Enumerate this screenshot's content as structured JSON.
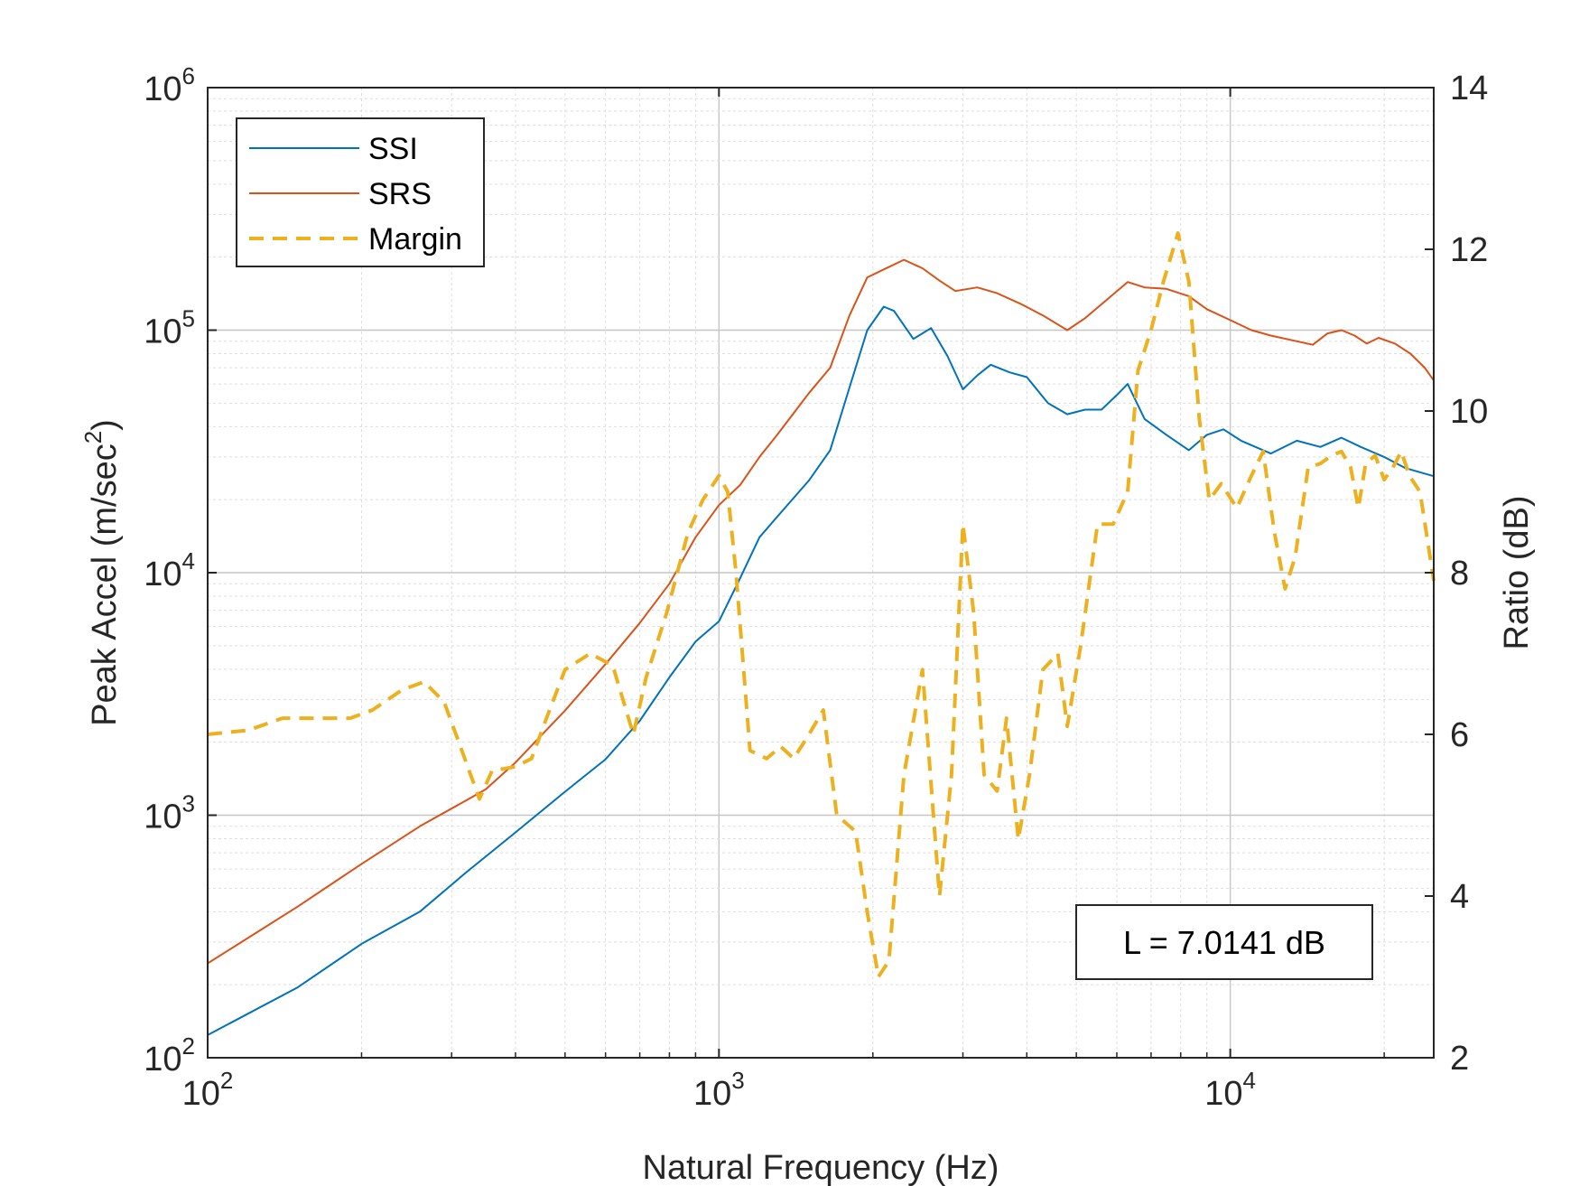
{
  "chart_data": {
    "type": "line",
    "xlabel": "Natural Frequency (Hz)",
    "ylabel_left": "Peak Accel (m/sec",
    "ylabel_left_sup": "2",
    "ylabel_left_end": ")",
    "ylabel_right": "Ratio (dB)",
    "x_scale": "log",
    "y_left_scale": "log",
    "xlim": [
      100,
      25000
    ],
    "ylim_left": [
      100,
      1000000
    ],
    "ylim_right": [
      2,
      14
    ],
    "grid": true,
    "legend_position": "top-left",
    "x_ticks": [
      {
        "base": "10",
        "exp": "2"
      },
      {
        "base": "10",
        "exp": "3"
      },
      {
        "base": "10",
        "exp": "4"
      }
    ],
    "y_left_ticks": [
      {
        "base": "10",
        "exp": "2"
      },
      {
        "base": "10",
        "exp": "3"
      },
      {
        "base": "10",
        "exp": "4"
      },
      {
        "base": "10",
        "exp": "5"
      },
      {
        "base": "10",
        "exp": "6"
      }
    ],
    "y_right_ticks": [
      "2",
      "4",
      "6",
      "8",
      "10",
      "12",
      "14"
    ],
    "annotation": "L = 7.0141 dB",
    "series": [
      {
        "name": "SSI",
        "axis": "left",
        "color": "#0072BD",
        "style": "solid",
        "points": [
          [
            100,
            124
          ],
          [
            150,
            195
          ],
          [
            200,
            295
          ],
          [
            260,
            400
          ],
          [
            320,
            580
          ],
          [
            400,
            850
          ],
          [
            500,
            1250
          ],
          [
            600,
            1700
          ],
          [
            700,
            2450
          ],
          [
            800,
            3700
          ],
          [
            900,
            5200
          ],
          [
            1000,
            6300
          ],
          [
            1100,
            9500
          ],
          [
            1200,
            14000
          ],
          [
            1300,
            17000
          ],
          [
            1500,
            24000
          ],
          [
            1650,
            32000
          ],
          [
            1800,
            58000
          ],
          [
            1950,
            100000
          ],
          [
            2100,
            125000
          ],
          [
            2200,
            120000
          ],
          [
            2400,
            92000
          ],
          [
            2600,
            102000
          ],
          [
            2800,
            78000
          ],
          [
            3000,
            57000
          ],
          [
            3200,
            65000
          ],
          [
            3400,
            72000
          ],
          [
            3700,
            67000
          ],
          [
            4000,
            64000
          ],
          [
            4400,
            50000
          ],
          [
            4800,
            45000
          ],
          [
            5200,
            47000
          ],
          [
            5600,
            47000
          ],
          [
            6000,
            54000
          ],
          [
            6300,
            60000
          ],
          [
            6800,
            43000
          ],
          [
            7500,
            37000
          ],
          [
            8300,
            32000
          ],
          [
            9000,
            37000
          ],
          [
            9700,
            39000
          ],
          [
            10500,
            35000
          ],
          [
            12000,
            31000
          ],
          [
            13500,
            35000
          ],
          [
            15000,
            33000
          ],
          [
            16500,
            36000
          ],
          [
            18000,
            33000
          ],
          [
            20000,
            30000
          ],
          [
            22000,
            27000
          ],
          [
            25000,
            25000
          ]
        ]
      },
      {
        "name": "SRS",
        "axis": "left",
        "color": "#D95319",
        "style": "solid",
        "points": [
          [
            100,
            245
          ],
          [
            150,
            420
          ],
          [
            200,
            630
          ],
          [
            260,
            900
          ],
          [
            320,
            1150
          ],
          [
            350,
            1280
          ],
          [
            400,
            1650
          ],
          [
            500,
            2700
          ],
          [
            600,
            4200
          ],
          [
            700,
            6200
          ],
          [
            800,
            9000
          ],
          [
            900,
            14000
          ],
          [
            1000,
            19000
          ],
          [
            1100,
            23000
          ],
          [
            1200,
            30000
          ],
          [
            1300,
            37000
          ],
          [
            1500,
            55000
          ],
          [
            1650,
            70000
          ],
          [
            1800,
            115000
          ],
          [
            1950,
            165000
          ],
          [
            2100,
            178000
          ],
          [
            2300,
            195000
          ],
          [
            2500,
            180000
          ],
          [
            2700,
            160000
          ],
          [
            2900,
            145000
          ],
          [
            3200,
            150000
          ],
          [
            3500,
            142000
          ],
          [
            3900,
            128000
          ],
          [
            4300,
            115000
          ],
          [
            4800,
            100000
          ],
          [
            5200,
            112000
          ],
          [
            5700,
            132000
          ],
          [
            6300,
            158000
          ],
          [
            6800,
            150000
          ],
          [
            7500,
            148000
          ],
          [
            8300,
            138000
          ],
          [
            9000,
            122000
          ],
          [
            10000,
            110000
          ],
          [
            11000,
            100000
          ],
          [
            12000,
            95000
          ],
          [
            13500,
            90000
          ],
          [
            14500,
            87000
          ],
          [
            15500,
            97000
          ],
          [
            16500,
            100000
          ],
          [
            17500,
            95000
          ],
          [
            18500,
            88000
          ],
          [
            19500,
            93000
          ],
          [
            21000,
            88000
          ],
          [
            22500,
            80000
          ],
          [
            24000,
            70000
          ],
          [
            25000,
            62000
          ]
        ]
      },
      {
        "name": "Margin",
        "axis": "right",
        "color": "#EDB120",
        "style": "dashed",
        "points": [
          [
            100,
            6.0
          ],
          [
            120,
            6.05
          ],
          [
            140,
            6.2
          ],
          [
            160,
            6.2
          ],
          [
            190,
            6.2
          ],
          [
            210,
            6.3
          ],
          [
            240,
            6.55
          ],
          [
            265,
            6.65
          ],
          [
            290,
            6.4
          ],
          [
            310,
            5.9
          ],
          [
            340,
            5.2
          ],
          [
            360,
            5.55
          ],
          [
            400,
            5.6
          ],
          [
            430,
            5.7
          ],
          [
            460,
            6.2
          ],
          [
            500,
            6.8
          ],
          [
            560,
            7.0
          ],
          [
            620,
            6.85
          ],
          [
            680,
            6.0
          ],
          [
            720,
            6.7
          ],
          [
            790,
            7.5
          ],
          [
            870,
            8.5
          ],
          [
            930,
            8.9
          ],
          [
            1000,
            9.2
          ],
          [
            1040,
            9.0
          ],
          [
            1080,
            8.0
          ],
          [
            1150,
            5.8
          ],
          [
            1240,
            5.7
          ],
          [
            1320,
            5.85
          ],
          [
            1400,
            5.7
          ],
          [
            1500,
            6.0
          ],
          [
            1600,
            6.3
          ],
          [
            1700,
            5.0
          ],
          [
            1850,
            4.8
          ],
          [
            1950,
            3.8
          ],
          [
            2050,
            3.0
          ],
          [
            2150,
            3.2
          ],
          [
            2300,
            5.5
          ],
          [
            2500,
            6.8
          ],
          [
            2700,
            4.0
          ],
          [
            2850,
            5.5
          ],
          [
            3000,
            8.6
          ],
          [
            3150,
            7.5
          ],
          [
            3300,
            5.5
          ],
          [
            3500,
            5.3
          ],
          [
            3650,
            6.2
          ],
          [
            3850,
            4.7
          ],
          [
            4050,
            5.5
          ],
          [
            4300,
            6.8
          ],
          [
            4600,
            7.0
          ],
          [
            4800,
            6.1
          ],
          [
            5100,
            7.1
          ],
          [
            5500,
            8.6
          ],
          [
            5900,
            8.6
          ],
          [
            6300,
            9.0
          ],
          [
            6600,
            10.5
          ],
          [
            7000,
            11.0
          ],
          [
            7400,
            11.6
          ],
          [
            7900,
            12.2
          ],
          [
            8300,
            11.6
          ],
          [
            8700,
            9.9
          ],
          [
            9100,
            8.9
          ],
          [
            9600,
            9.1
          ],
          [
            10300,
            8.8
          ],
          [
            11000,
            9.2
          ],
          [
            11600,
            9.5
          ],
          [
            12200,
            8.5
          ],
          [
            12800,
            7.8
          ],
          [
            13400,
            8.2
          ],
          [
            14200,
            9.3
          ],
          [
            15000,
            9.35
          ],
          [
            15800,
            9.45
          ],
          [
            16500,
            9.5
          ],
          [
            17200,
            9.3
          ],
          [
            17800,
            8.8
          ],
          [
            18400,
            9.35
          ],
          [
            19200,
            9.45
          ],
          [
            20000,
            9.15
          ],
          [
            20800,
            9.3
          ],
          [
            21600,
            9.5
          ],
          [
            22400,
            9.2
          ],
          [
            23500,
            9.0
          ],
          [
            25000,
            7.9
          ]
        ]
      }
    ]
  }
}
